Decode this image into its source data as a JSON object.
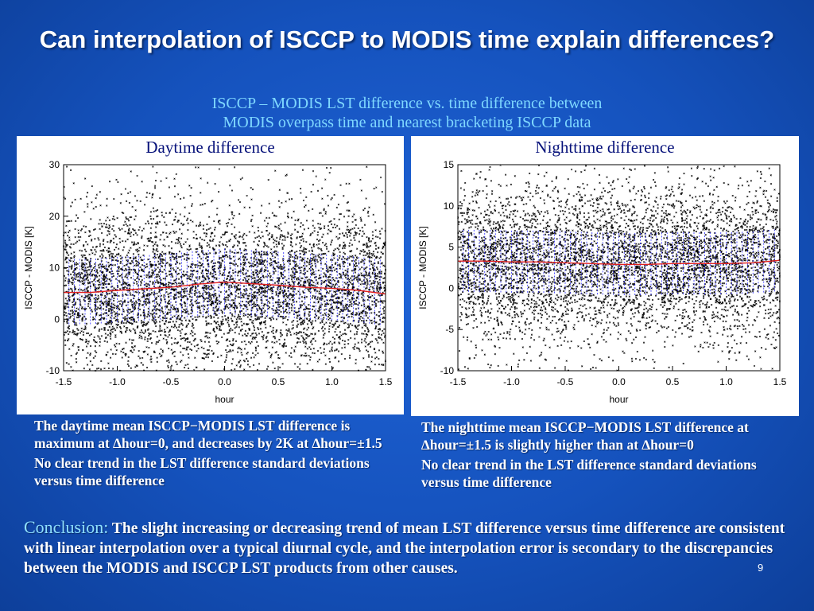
{
  "slide": {
    "title": "Can interpolation of ISCCP to MODIS time explain differences?",
    "subtitle_line1": "ISCCP – MODIS LST difference vs. time difference between",
    "subtitle_line2": "MODIS overpass time and nearest bracketing ISCCP data",
    "page_number": "9"
  },
  "notes": {
    "day_1": "The daytime mean ISCCP−MODIS LST difference is maximum at ∆hour=0, and decreases by 2K at ∆hour=±1.5",
    "day_2": "No clear trend in the LST difference standard deviations versus time difference",
    "night_1": "The nighttime mean ISCCP−MODIS LST difference at ∆hour=±1.5 is slightly higher than at ∆hour=0",
    "night_2": "No clear trend in the LST difference standard deviations versus time difference"
  },
  "conclusion": {
    "lead": "Conclusion:",
    "text": " The slight increasing or decreasing trend of mean LST difference versus time difference are consistent with linear interpolation over a typical diurnal cycle, and the interpolation error is secondary to the discrepancies between the MODIS and ISCCP LST products from other causes."
  },
  "colors": {
    "scatter": "#000000",
    "mean_line": "#e02020",
    "std_bars": "#2a2aff",
    "panel_title": "#06117a"
  },
  "chart_data": [
    {
      "type": "scatter",
      "title": "Daytime difference",
      "xlabel": "hour",
      "ylabel": "ISCCP - MODIS [K]",
      "xlim": [
        -1.5,
        1.5
      ],
      "ylim": [
        -10,
        30
      ],
      "x_ticks": [
        "-1.5",
        "-1.0",
        "-0.5",
        "0.0",
        "0.5",
        "1.0",
        "1.5"
      ],
      "y_ticks": [
        "-10",
        "0",
        "10",
        "20",
        "30"
      ],
      "point_cloud": {
        "center": 5.5,
        "spread": 7.5,
        "count": 5200
      },
      "mean_line": {
        "x": [
          -1.5,
          -1.25,
          -1.0,
          -0.75,
          -0.5,
          -0.25,
          0.0,
          0.25,
          0.5,
          0.75,
          1.0,
          1.25,
          1.5
        ],
        "y": [
          5.2,
          5.2,
          5.6,
          5.9,
          6.2,
          6.8,
          7.2,
          6.9,
          6.6,
          6.2,
          6.0,
          5.6,
          4.9
        ]
      },
      "std_bar_halfwidth": 6.5,
      "grid": false,
      "legend": "none"
    },
    {
      "type": "scatter",
      "title": "Nighttime difference",
      "xlabel": "hour",
      "ylabel": "ISCCP - MODIS [K]",
      "xlim": [
        -1.5,
        1.5
      ],
      "ylim": [
        -10,
        15
      ],
      "x_ticks": [
        "-1.5",
        "-1.0",
        "-0.5",
        "0.0",
        "0.5",
        "1.0",
        "1.5"
      ],
      "y_ticks": [
        "-10",
        "-5",
        "0",
        "5",
        "10",
        "15"
      ],
      "point_cloud": {
        "center": 3.0,
        "spread": 4.5,
        "count": 5200
      },
      "mean_line": {
        "x": [
          -1.5,
          -1.25,
          -1.0,
          -0.75,
          -0.5,
          -0.25,
          0.0,
          0.25,
          0.5,
          0.75,
          1.0,
          1.25,
          1.5
        ],
        "y": [
          3.3,
          3.3,
          3.2,
          3.2,
          3.1,
          3.0,
          2.9,
          2.9,
          3.0,
          3.0,
          3.0,
          3.1,
          3.4
        ]
      },
      "std_bar_halfwidth": 3.8,
      "grid": false,
      "legend": "none"
    }
  ]
}
